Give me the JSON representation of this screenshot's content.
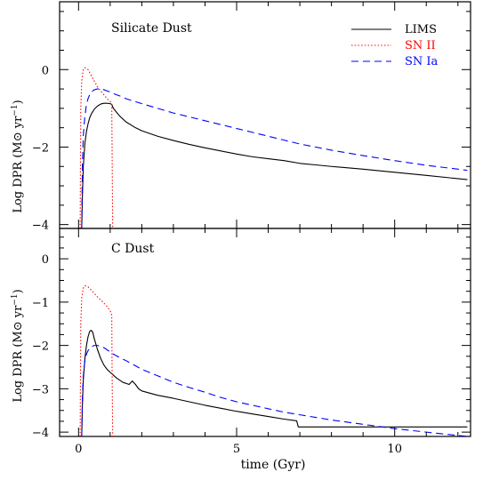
{
  "chart_data": [
    {
      "type": "line",
      "title": "Silicate Dust",
      "xlabel": "",
      "ylabel": "Log DPR (M⊙ yr⁻¹)",
      "xlim": [
        -0.6,
        12.4
      ],
      "ylim": [
        -4.1,
        1.75
      ],
      "x_ticks": [
        0,
        5,
        10
      ],
      "x_tick_labels": [
        "",
        "",
        ""
      ],
      "y_ticks": [
        0,
        -2,
        -4
      ],
      "y_tick_labels": [
        "0",
        "−2",
        "−4"
      ],
      "legend": {
        "placement": "top-right",
        "entries": [
          {
            "label": "LIMS",
            "color": "#000000",
            "style": "solid"
          },
          {
            "label": "SN II",
            "color": "#ff0000",
            "style": "dotted"
          },
          {
            "label": "SN Ia",
            "color": "#0000ff",
            "style": "dashed"
          }
        ]
      },
      "series": [
        {
          "name": "LIMS",
          "color": "#000000",
          "style": "solid",
          "x": [
            0.1,
            0.12,
            0.15,
            0.2,
            0.25,
            0.3,
            0.35,
            0.4,
            0.5,
            0.6,
            0.7,
            0.8,
            0.9,
            1.0,
            1.05,
            1.1,
            1.3,
            1.5,
            1.8,
            2.0,
            2.5,
            3.0,
            3.5,
            4.0,
            4.5,
            5.0,
            5.5,
            6.0,
            6.5,
            7.0,
            7.5,
            8.0,
            9.0,
            10.0,
            11.0,
            12.3
          ],
          "y": [
            -4.1,
            -3.3,
            -2.5,
            -1.9,
            -1.6,
            -1.4,
            -1.25,
            -1.15,
            -1.02,
            -0.94,
            -0.89,
            -0.87,
            -0.87,
            -0.88,
            -0.9,
            -1.0,
            -1.2,
            -1.35,
            -1.5,
            -1.58,
            -1.72,
            -1.83,
            -1.93,
            -2.02,
            -2.1,
            -2.18,
            -2.25,
            -2.3,
            -2.35,
            -2.42,
            -2.46,
            -2.5,
            -2.57,
            -2.65,
            -2.73,
            -2.84
          ]
        },
        {
          "name": "SN II",
          "color": "#ff0000",
          "style": "dotted",
          "x": [
            0.05,
            0.07,
            0.1,
            0.15,
            0.2,
            0.3,
            0.4,
            0.5,
            0.6,
            0.7,
            0.8,
            0.9,
            1.0,
            1.05,
            1.06,
            1.08
          ],
          "y": [
            -4.1,
            -1.0,
            -0.3,
            0.0,
            0.05,
            0.0,
            -0.15,
            -0.3,
            -0.45,
            -0.55,
            -0.65,
            -0.75,
            -0.82,
            -0.9,
            -2.0,
            -4.1
          ]
        },
        {
          "name": "SN Ia",
          "color": "#0000ff",
          "style": "dashed",
          "x": [
            0.1,
            0.12,
            0.15,
            0.2,
            0.25,
            0.3,
            0.35,
            0.4,
            0.5,
            0.6,
            0.7,
            0.8,
            0.9,
            1.0,
            1.1,
            1.3,
            1.5,
            2.0,
            2.5,
            3.0,
            3.5,
            4.0,
            4.5,
            5.0,
            5.5,
            6.0,
            6.5,
            7.0,
            8.0,
            9.0,
            10.0,
            11.0,
            12.3
          ],
          "y": [
            -4.1,
            -2.5,
            -1.7,
            -1.2,
            -0.9,
            -0.75,
            -0.65,
            -0.58,
            -0.52,
            -0.5,
            -0.5,
            -0.52,
            -0.55,
            -0.58,
            -0.62,
            -0.68,
            -0.75,
            -0.88,
            -1.0,
            -1.12,
            -1.22,
            -1.32,
            -1.42,
            -1.52,
            -1.62,
            -1.72,
            -1.82,
            -1.92,
            -2.08,
            -2.22,
            -2.35,
            -2.47,
            -2.6
          ]
        }
      ]
    },
    {
      "type": "line",
      "title": "C Dust",
      "xlabel": "time (Gyr)",
      "ylabel": "Log DPR (M⊙ yr⁻¹)",
      "xlim": [
        -0.6,
        12.4
      ],
      "ylim": [
        -4.1,
        0.7
      ],
      "x_ticks": [
        0,
        5,
        10
      ],
      "x_tick_labels": [
        "0",
        "5",
        "10"
      ],
      "y_ticks": [
        0,
        -1,
        -2,
        -3,
        -4
      ],
      "y_tick_labels": [
        "0",
        "−1",
        "−2",
        "−3",
        "−4"
      ],
      "series": [
        {
          "name": "LIMS",
          "color": "#000000",
          "style": "solid",
          "x": [
            0.1,
            0.12,
            0.15,
            0.2,
            0.25,
            0.3,
            0.35,
            0.4,
            0.45,
            0.5,
            0.6,
            0.7,
            0.8,
            0.9,
            1.0,
            1.2,
            1.4,
            1.6,
            1.7,
            1.8,
            1.9,
            2.0,
            2.5,
            3.0,
            3.5,
            4.0,
            4.5,
            5.0,
            5.5,
            6.0,
            6.5,
            6.9,
            6.95,
            12.3
          ],
          "y": [
            -4.1,
            -3.4,
            -2.8,
            -2.3,
            -2.0,
            -1.8,
            -1.68,
            -1.65,
            -1.7,
            -1.85,
            -2.1,
            -2.3,
            -2.45,
            -2.55,
            -2.62,
            -2.75,
            -2.85,
            -2.9,
            -2.82,
            -2.9,
            -3.0,
            -3.05,
            -3.15,
            -3.22,
            -3.3,
            -3.38,
            -3.45,
            -3.52,
            -3.58,
            -3.64,
            -3.7,
            -3.74,
            -3.88,
            -3.88
          ]
        },
        {
          "name": "SN II",
          "color": "#ff0000",
          "style": "dotted",
          "x": [
            0.05,
            0.07,
            0.1,
            0.15,
            0.2,
            0.3,
            0.4,
            0.5,
            0.6,
            0.7,
            0.8,
            0.9,
            1.0,
            1.05,
            1.06,
            1.08
          ],
          "y": [
            -4.1,
            -1.5,
            -0.9,
            -0.68,
            -0.62,
            -0.65,
            -0.72,
            -0.8,
            -0.88,
            -0.95,
            -1.02,
            -1.1,
            -1.2,
            -1.3,
            -2.5,
            -4.1
          ]
        },
        {
          "name": "SN Ia",
          "color": "#0000ff",
          "style": "dashed",
          "x": [
            0.1,
            0.12,
            0.15,
            0.2,
            0.25,
            0.3,
            0.35,
            0.4,
            0.5,
            0.6,
            0.7,
            0.8,
            0.9,
            1.0,
            1.1,
            1.3,
            1.5,
            2.0,
            2.5,
            3.0,
            3.5,
            4.0,
            4.5,
            5.0,
            5.5,
            6.0,
            6.5,
            7.0,
            7.5,
            8.0,
            8.5,
            9.0,
            9.5,
            10.0,
            10.5,
            11.0,
            11.5,
            12.3
          ],
          "y": [
            -4.1,
            -3.2,
            -2.7,
            -2.35,
            -2.2,
            -2.12,
            -2.07,
            -2.03,
            -2.0,
            -2.0,
            -2.02,
            -2.05,
            -2.1,
            -2.15,
            -2.2,
            -2.28,
            -2.35,
            -2.55,
            -2.7,
            -2.85,
            -2.97,
            -3.08,
            -3.2,
            -3.3,
            -3.38,
            -3.46,
            -3.54,
            -3.6,
            -3.66,
            -3.72,
            -3.77,
            -3.82,
            -3.87,
            -3.92,
            -3.96,
            -4.0,
            -4.04,
            -4.1
          ]
        }
      ]
    }
  ]
}
